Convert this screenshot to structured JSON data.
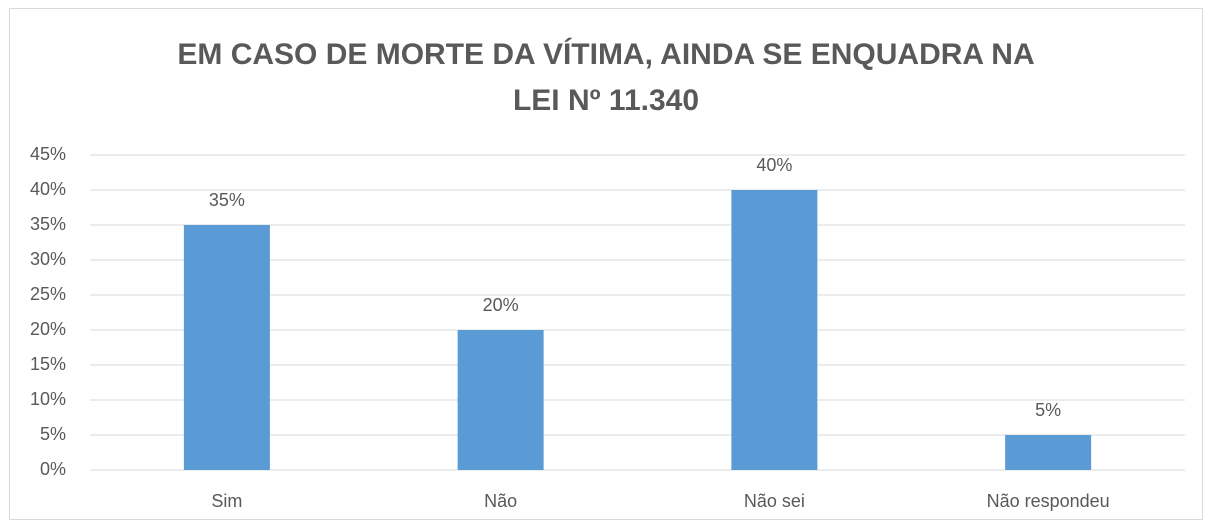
{
  "chart_data": {
    "type": "bar",
    "title": "EM CASO DE MORTE DA VÍTIMA, AINDA SE ENQUADRA NA LEI Nº 11.340",
    "categories": [
      "Sim",
      "Não",
      "Não sei",
      "Não respondeu"
    ],
    "values": [
      35,
      20,
      40,
      5
    ],
    "value_labels": [
      "35%",
      "20%",
      "40%",
      "5%"
    ],
    "color": "#5b9bd5",
    "ylim": [
      0,
      45
    ],
    "yticks": [
      {
        "value": 0,
        "label": "0%"
      },
      {
        "value": 5,
        "label": "5%"
      },
      {
        "value": 10,
        "label": "10%"
      },
      {
        "value": 15,
        "label": "15%"
      },
      {
        "value": 20,
        "label": "20%"
      },
      {
        "value": 25,
        "label": "25%"
      },
      {
        "value": 30,
        "label": "30%"
      },
      {
        "value": 35,
        "label": "35%"
      },
      {
        "value": 40,
        "label": "40%"
      },
      {
        "value": 45,
        "label": "45%"
      }
    ],
    "grid": true
  }
}
